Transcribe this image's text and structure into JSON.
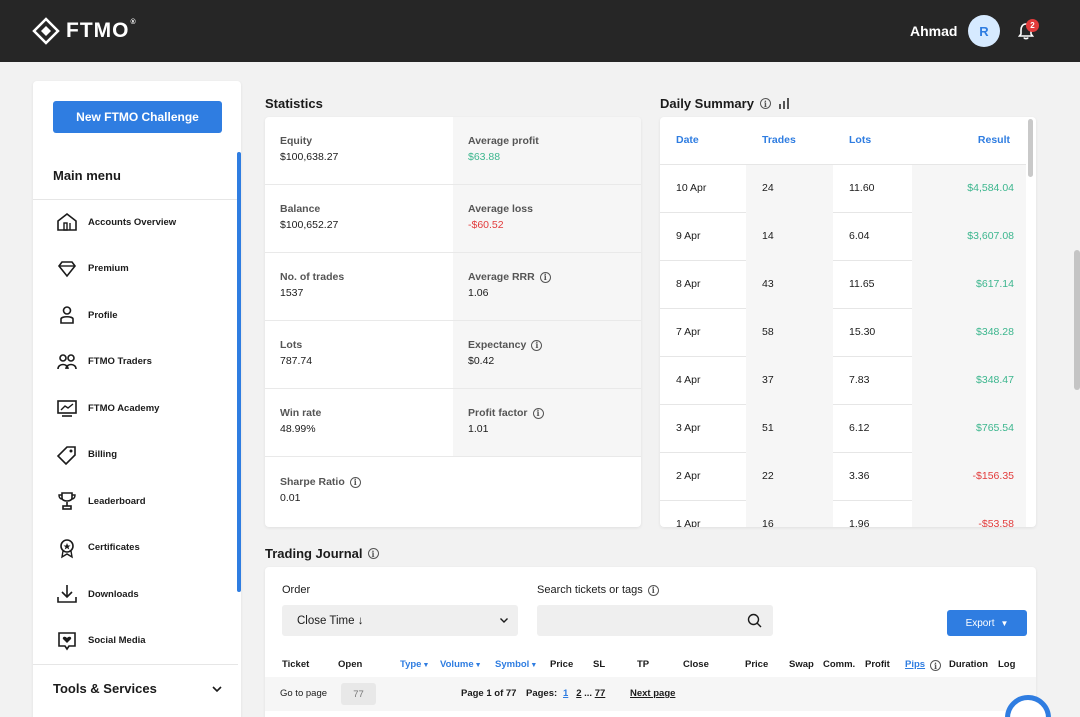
{
  "header": {
    "logo_text": "FTMO",
    "logo_mark": "®",
    "user_name": "Ahmad",
    "avatar_initial": "R",
    "notification_count": "2"
  },
  "sidebar": {
    "new_challenge_label": "New FTMO Challenge",
    "main_menu_title": "Main menu",
    "items": [
      {
        "label": "Accounts Overview",
        "icon": "home-icon"
      },
      {
        "label": "Premium",
        "icon": "diamond-icon"
      },
      {
        "label": "Profile",
        "icon": "person-icon"
      },
      {
        "label": "FTMO Traders",
        "icon": "people-icon"
      },
      {
        "label": "FTMO Academy",
        "icon": "academy-icon"
      },
      {
        "label": "Billing",
        "icon": "tag-icon"
      },
      {
        "label": "Leaderboard",
        "icon": "trophy-icon"
      },
      {
        "label": "Certificates",
        "icon": "certificate-icon"
      },
      {
        "label": "Downloads",
        "icon": "download-icon"
      },
      {
        "label": "Social Media",
        "icon": "social-icon"
      }
    ],
    "tools_label": "Tools & Services"
  },
  "statistics": {
    "title": "Statistics",
    "left": [
      {
        "label": "Equity",
        "value": "$100,638.27"
      },
      {
        "label": "Balance",
        "value": "$100,652.27"
      },
      {
        "label": "No. of trades",
        "value": "1537"
      },
      {
        "label": "Lots",
        "value": "787.74"
      },
      {
        "label": "Win rate",
        "value": "48.99%"
      },
      {
        "label": "Sharpe Ratio",
        "value": "0.01"
      }
    ],
    "right": [
      {
        "label": "Average profit",
        "value": "$63.88"
      },
      {
        "label": "Average loss",
        "value": "-$60.52"
      },
      {
        "label": "Average RRR",
        "value": "1.06"
      },
      {
        "label": "Expectancy",
        "value": "$0.42"
      },
      {
        "label": "Profit factor",
        "value": "1.01"
      }
    ]
  },
  "daily_summary": {
    "title": "Daily Summary",
    "columns": {
      "date": "Date",
      "trades": "Trades",
      "lots": "Lots",
      "result": "Result"
    },
    "rows": [
      {
        "date": "10 Apr",
        "trades": "24",
        "lots": "11.60",
        "result": "$4,584.04"
      },
      {
        "date": "9 Apr",
        "trades": "14",
        "lots": "6.04",
        "result": "$3,607.08"
      },
      {
        "date": "8 Apr",
        "trades": "43",
        "lots": "11.65",
        "result": "$617.14"
      },
      {
        "date": "7 Apr",
        "trades": "58",
        "lots": "15.30",
        "result": "$348.28"
      },
      {
        "date": "4 Apr",
        "trades": "37",
        "lots": "7.83",
        "result": "$348.47"
      },
      {
        "date": "3 Apr",
        "trades": "51",
        "lots": "6.12",
        "result": "$765.54"
      },
      {
        "date": "2 Apr",
        "trades": "22",
        "lots": "3.36",
        "result": "-$156.35"
      },
      {
        "date": "1 Apr",
        "trades": "16",
        "lots": "1.96",
        "result": "-$53.58"
      }
    ]
  },
  "journal": {
    "title": "Trading Journal",
    "order_label": "Order",
    "order_value": "Close Time ↓",
    "search_label": "Search tickets or tags",
    "search_placeholder": "",
    "export_label": "Export",
    "columns": {
      "ticket": "Ticket",
      "open": "Open",
      "type": "Type",
      "volume": "Volume",
      "symbol": "Symbol",
      "price": "Price",
      "sl": "SL",
      "tp": "TP",
      "close": "Close",
      "price2": "Price",
      "swap": "Swap",
      "comm": "Comm.",
      "profit": "Profit",
      "pips": "Pips",
      "duration": "Duration",
      "log": "Log"
    },
    "pager": {
      "goto_label": "Go to page",
      "goto_placeholder": "77",
      "page_info": "Page 1 of 77",
      "pages_label": "Pages:",
      "page_1": "1",
      "page_2": "2",
      "ellipsis": "...",
      "page_last": "77",
      "next_label": "Next page"
    }
  }
}
